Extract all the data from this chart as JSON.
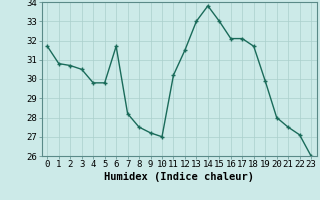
{
  "x": [
    0,
    1,
    2,
    3,
    4,
    5,
    6,
    7,
    8,
    9,
    10,
    11,
    12,
    13,
    14,
    15,
    16,
    17,
    18,
    19,
    20,
    21,
    22,
    23
  ],
  "y": [
    31.7,
    30.8,
    30.7,
    30.5,
    29.8,
    29.8,
    31.7,
    28.2,
    27.5,
    27.2,
    27.0,
    30.2,
    31.5,
    33.0,
    33.8,
    33.0,
    32.1,
    32.1,
    31.7,
    29.9,
    28.0,
    27.5,
    27.1,
    26.0
  ],
  "line_color": "#1a6b5a",
  "marker": "+",
  "marker_color": "#1a6b5a",
  "bg_color": "#cceae8",
  "grid_color": "#aacfcc",
  "xlabel": "Humidex (Indice chaleur)",
  "ylim": [
    26,
    34
  ],
  "xlim": [
    -0.5,
    23.5
  ],
  "yticks": [
    26,
    27,
    28,
    29,
    30,
    31,
    32,
    33,
    34
  ],
  "xticks": [
    0,
    1,
    2,
    3,
    4,
    5,
    6,
    7,
    8,
    9,
    10,
    11,
    12,
    13,
    14,
    15,
    16,
    17,
    18,
    19,
    20,
    21,
    22,
    23
  ],
  "xlabel_fontsize": 7.5,
  "tick_fontsize": 6.5,
  "line_width": 1.0,
  "marker_size": 3.5
}
